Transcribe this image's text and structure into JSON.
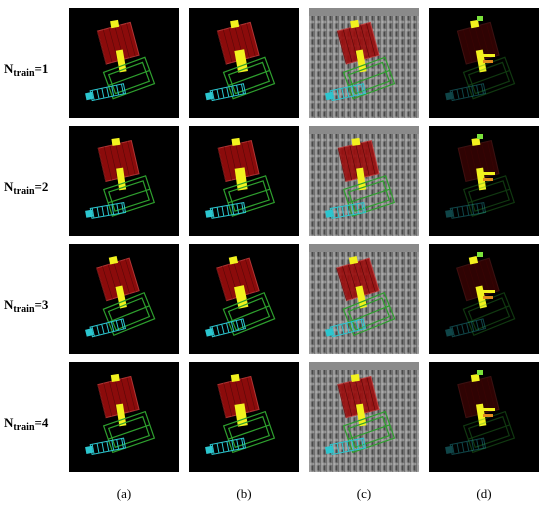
{
  "rows": [
    {
      "label_prefix": "N",
      "label_sub": "train",
      "label_suffix": "=1"
    },
    {
      "label_prefix": "N",
      "label_sub": "train",
      "label_suffix": "=2"
    },
    {
      "label_prefix": "N",
      "label_sub": "train",
      "label_suffix": "=3"
    },
    {
      "label_prefix": "N",
      "label_sub": "train",
      "label_suffix": "=4"
    }
  ],
  "columns": [
    "(a)",
    "(b)",
    "(c)",
    "(d)"
  ],
  "colors": {
    "red_part": "#9b0d0d",
    "yellow_part": "#f2f21e",
    "green_part": "#2ea02e",
    "cyan_part": "#2cc6cf",
    "xray_background": "#6e6e6e"
  }
}
